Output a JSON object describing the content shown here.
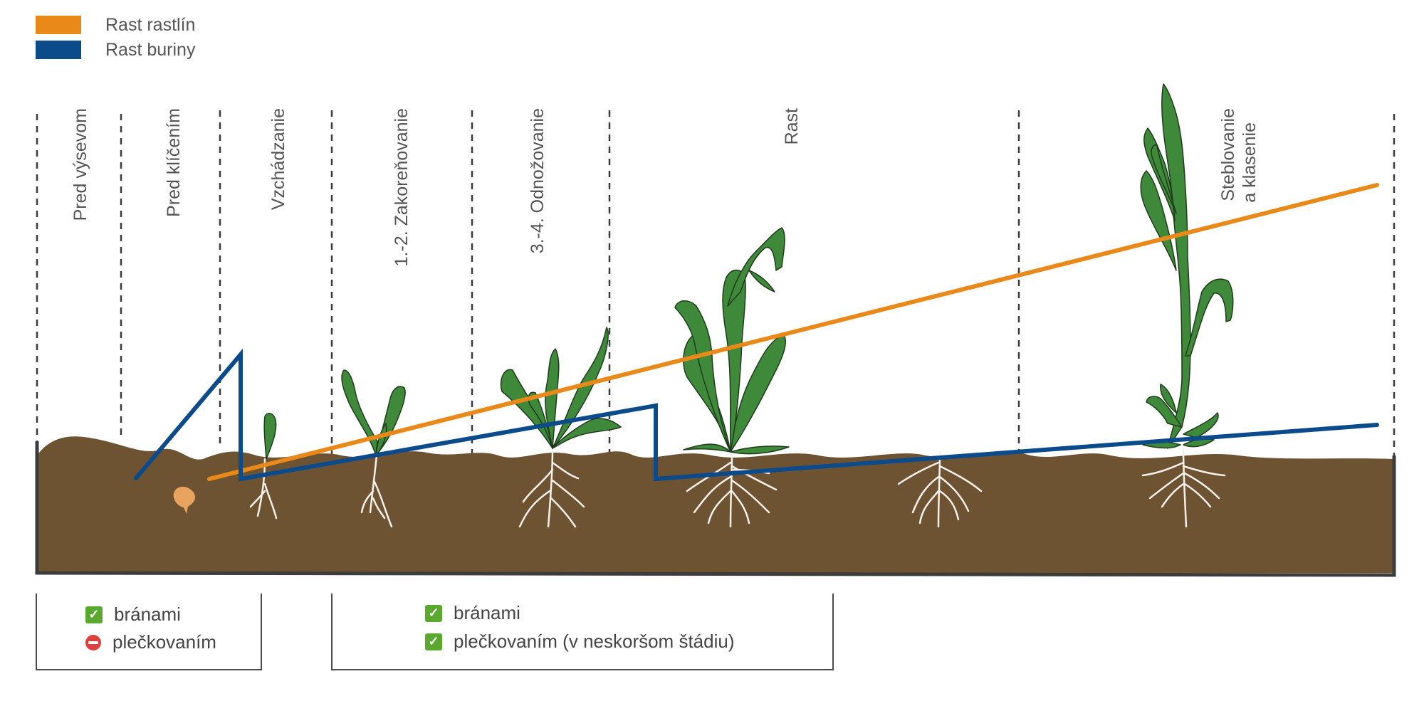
{
  "legend": [
    {
      "label": "Rast rastlín",
      "color": "#E8891A"
    },
    {
      "label": "Rast buriny",
      "color": "#0B4A8B"
    }
  ],
  "stages": [
    {
      "lines": [
        "Pred výsevom"
      ]
    },
    {
      "lines": [
        "Pred klíčením"
      ]
    },
    {
      "lines": [
        "Vzchádzanie"
      ]
    },
    {
      "lines": [
        "1.-2. Zakoreňovanie"
      ]
    },
    {
      "lines": [
        "3.-4. Odnožovanie"
      ]
    },
    {
      "lines": [
        "Rast"
      ]
    },
    {
      "lines": [
        "Steblovanie",
        "a klasenie"
      ]
    }
  ],
  "methods": {
    "box1": {
      "rows": [
        {
          "status": "ok",
          "label": "bránami"
        },
        {
          "status": "no",
          "label": "plečkovaním"
        }
      ]
    },
    "box2": {
      "rows": [
        {
          "status": "ok",
          "label": "bránami"
        },
        {
          "status": "ok",
          "label": "plečkovaním (v neskoršom štádiu)"
        }
      ]
    }
  },
  "colors": {
    "soil": "#6E5333",
    "plant": "#3F8A3A",
    "plant_outline": "#1F3A1C",
    "seed": "#E8A35E",
    "frame": "#3C3C3C"
  }
}
